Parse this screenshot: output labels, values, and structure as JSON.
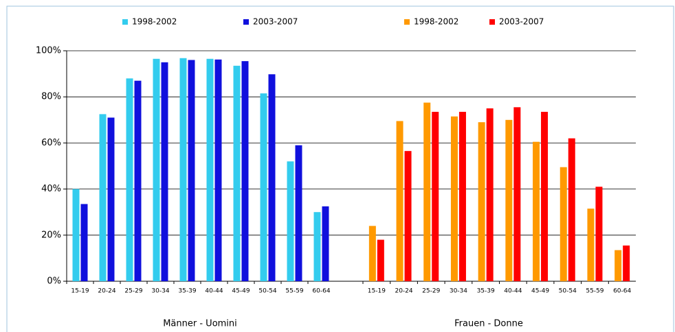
{
  "chart_data": [
    {
      "type": "bar",
      "xlabel": "Männer - Uomini",
      "categories": [
        "15-19",
        "20-24",
        "25-29",
        "30-34",
        "35-39",
        "40-44",
        "45-49",
        "50-54",
        "55-59",
        "60-64"
      ],
      "series": [
        {
          "name": "1998-2002",
          "color": "#33ccee",
          "values": [
            40,
            72.5,
            88,
            96.5,
            96.8,
            96.5,
            93.5,
            81.5,
            52,
            30
          ]
        },
        {
          "name": "2003-2007",
          "color": "#1010dd",
          "values": [
            33.5,
            71,
            87,
            95,
            96,
            96.2,
            95.5,
            89.8,
            59,
            32.5
          ]
        }
      ],
      "ylim": [
        0,
        100
      ],
      "yticks": [
        {
          "value": 0,
          "label": "0%"
        },
        {
          "value": 20,
          "label": "20%"
        },
        {
          "value": 40,
          "label": "40%"
        },
        {
          "value": 60,
          "label": "60%"
        },
        {
          "value": 80,
          "label": "80%"
        },
        {
          "value": 100,
          "label": "100%"
        }
      ],
      "grid": true
    },
    {
      "type": "bar",
      "xlabel": "Frauen - Donne",
      "categories": [
        "15-19",
        "20-24",
        "25-29",
        "30-34",
        "35-39",
        "40-44",
        "45-49",
        "50-54",
        "55-59",
        "60-64"
      ],
      "series": [
        {
          "name": "1998-2002",
          "color": "#ff9900",
          "values": [
            24,
            69.5,
            77.5,
            71.5,
            69,
            70,
            60.5,
            49.5,
            31.5,
            13.5
          ]
        },
        {
          "name": "2003-2007",
          "color": "#ff0000",
          "values": [
            18,
            56.5,
            73.5,
            73.5,
            75,
            75.5,
            73.5,
            62,
            41,
            15.5
          ]
        }
      ],
      "ylim": [
        0,
        100
      ],
      "yticks": [
        {
          "value": 0,
          "label": "0%"
        },
        {
          "value": 20,
          "label": "20%"
        },
        {
          "value": 40,
          "label": "40%"
        },
        {
          "value": 60,
          "label": "60%"
        },
        {
          "value": 80,
          "label": "80%"
        },
        {
          "value": 100,
          "label": "100%"
        }
      ],
      "grid": true
    }
  ]
}
